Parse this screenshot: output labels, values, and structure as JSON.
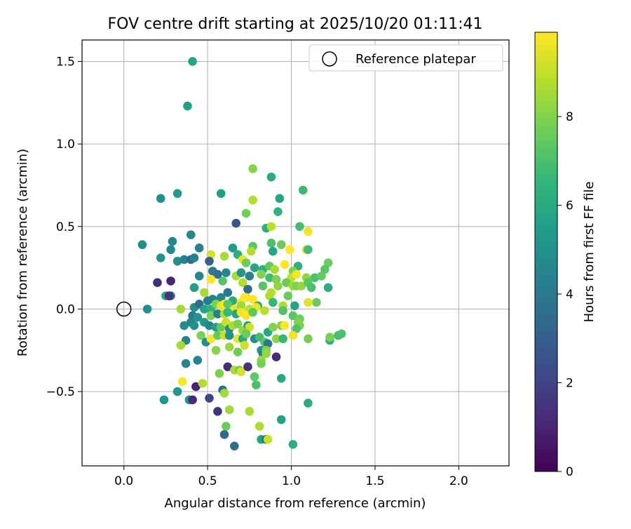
{
  "chart_data": {
    "type": "scatter",
    "title": "FOV centre drift starting at 2025/10/20 01:11:41",
    "xlabel": "Angular distance from reference (arcmin)",
    "ylabel": "Rotation from reference (arcmin)",
    "xlim": [
      -0.25,
      2.3
    ],
    "ylim": [
      -0.95,
      1.63
    ],
    "xticks": [
      0.0,
      0.5,
      1.0,
      1.5,
      2.0
    ],
    "xtick_labels": [
      "0.0",
      "0.5",
      "1.0",
      "1.5",
      "2.0"
    ],
    "yticks": [
      -0.5,
      0.0,
      0.5,
      1.0,
      1.5
    ],
    "ytick_labels": [
      "−0.5",
      "0.0",
      "0.5",
      "1.0",
      "1.5"
    ],
    "grid": true,
    "legend": {
      "position": "top-right",
      "label": "Reference platepar"
    },
    "reference_point": {
      "x": 0.0,
      "y": 0.0
    },
    "colorbar": {
      "label": "Hours from first FF file",
      "range": [
        0,
        9.9
      ],
      "ticks": [
        0,
        2,
        4,
        6,
        8
      ],
      "tick_labels": [
        "0",
        "2",
        "4",
        "6",
        "8"
      ],
      "colormap": "viridis",
      "stops": [
        "#440154",
        "#482878",
        "#3e4989",
        "#31688e",
        "#26828e",
        "#1f9e89",
        "#35b779",
        "#6ece58",
        "#b5de2b",
        "#fde725"
      ]
    },
    "points": [
      {
        "x": 0.41,
        "y": 1.5,
        "c": 5.8
      },
      {
        "x": 0.38,
        "y": 1.23,
        "c": 5.6
      },
      {
        "x": 0.77,
        "y": 0.85,
        "c": 8.1
      },
      {
        "x": 0.88,
        "y": 0.8,
        "c": 6.1
      },
      {
        "x": 1.07,
        "y": 0.72,
        "c": 6.7
      },
      {
        "x": 0.32,
        "y": 0.7,
        "c": 5.2
      },
      {
        "x": 0.58,
        "y": 0.7,
        "c": 5.6
      },
      {
        "x": 0.22,
        "y": 0.67,
        "c": 5.0
      },
      {
        "x": 0.93,
        "y": 0.67,
        "c": 5.8
      },
      {
        "x": 0.77,
        "y": 0.66,
        "c": 8.8
      },
      {
        "x": 0.73,
        "y": 0.58,
        "c": 7.8
      },
      {
        "x": 0.92,
        "y": 0.59,
        "c": 6.4
      },
      {
        "x": 0.67,
        "y": 0.52,
        "c": 2.7
      },
      {
        "x": 0.85,
        "y": 0.49,
        "c": 6.3
      },
      {
        "x": 0.88,
        "y": 0.5,
        "c": 8.9
      },
      {
        "x": 1.05,
        "y": 0.5,
        "c": 6.9
      },
      {
        "x": 1.1,
        "y": 0.47,
        "c": 9.7
      },
      {
        "x": 0.11,
        "y": 0.39,
        "c": 4.8
      },
      {
        "x": 0.4,
        "y": 0.45,
        "c": 4.6
      },
      {
        "x": 0.29,
        "y": 0.41,
        "c": 4.6
      },
      {
        "x": 0.28,
        "y": 0.36,
        "c": 4.6
      },
      {
        "x": 0.45,
        "y": 0.37,
        "c": 4.3
      },
      {
        "x": 0.65,
        "y": 0.37,
        "c": 5.5
      },
      {
        "x": 0.77,
        "y": 0.38,
        "c": 7.3
      },
      {
        "x": 0.88,
        "y": 0.4,
        "c": 7.0
      },
      {
        "x": 0.94,
        "y": 0.39,
        "c": 7.6
      },
      {
        "x": 0.52,
        "y": 0.33,
        "c": 9.3
      },
      {
        "x": 0.6,
        "y": 0.32,
        "c": 8.6
      },
      {
        "x": 0.68,
        "y": 0.33,
        "c": 6.3
      },
      {
        "x": 0.76,
        "y": 0.35,
        "c": 8.8
      },
      {
        "x": 0.89,
        "y": 0.35,
        "c": 5.8
      },
      {
        "x": 0.99,
        "y": 0.36,
        "c": 9.9
      },
      {
        "x": 1.09,
        "y": 0.36,
        "c": 9.4
      },
      {
        "x": 1.1,
        "y": 0.36,
        "c": 6.8
      },
      {
        "x": 0.22,
        "y": 0.31,
        "c": 5.2
      },
      {
        "x": 0.32,
        "y": 0.29,
        "c": 4.8
      },
      {
        "x": 0.36,
        "y": 0.3,
        "c": 4.4
      },
      {
        "x": 0.4,
        "y": 0.3,
        "c": 3.4
      },
      {
        "x": 0.42,
        "y": 0.31,
        "c": 4.4
      },
      {
        "x": 0.51,
        "y": 0.29,
        "c": 3.1
      },
      {
        "x": 0.71,
        "y": 0.3,
        "c": 9.6
      },
      {
        "x": 0.73,
        "y": 0.28,
        "c": 7.6
      },
      {
        "x": 0.78,
        "y": 0.25,
        "c": 5.8
      },
      {
        "x": 0.83,
        "y": 0.24,
        "c": 6.4
      },
      {
        "x": 0.87,
        "y": 0.26,
        "c": 7.5
      },
      {
        "x": 0.9,
        "y": 0.24,
        "c": 8.6
      },
      {
        "x": 0.96,
        "y": 0.27,
        "c": 9.9
      },
      {
        "x": 1.04,
        "y": 0.26,
        "c": 6.4
      },
      {
        "x": 1.01,
        "y": 0.23,
        "c": 7.9
      },
      {
        "x": 1.22,
        "y": 0.28,
        "c": 7.6
      },
      {
        "x": 1.2,
        "y": 0.24,
        "c": 7.3
      },
      {
        "x": 0.45,
        "y": 0.2,
        "c": 4.6
      },
      {
        "x": 0.53,
        "y": 0.23,
        "c": 4.2
      },
      {
        "x": 0.56,
        "y": 0.21,
        "c": 3.6
      },
      {
        "x": 0.61,
        "y": 0.22,
        "c": 4.6
      },
      {
        "x": 0.67,
        "y": 0.2,
        "c": 8.6
      },
      {
        "x": 0.7,
        "y": 0.22,
        "c": 5.1
      },
      {
        "x": 0.75,
        "y": 0.2,
        "c": 4.3
      },
      {
        "x": 0.82,
        "y": 0.21,
        "c": 8.0
      },
      {
        "x": 0.87,
        "y": 0.19,
        "c": 6.8
      },
      {
        "x": 0.91,
        "y": 0.18,
        "c": 7.9
      },
      {
        "x": 1.0,
        "y": 0.19,
        "c": 8.9
      },
      {
        "x": 1.03,
        "y": 0.21,
        "c": 9.8
      },
      {
        "x": 1.14,
        "y": 0.19,
        "c": 7.0
      },
      {
        "x": 1.09,
        "y": 0.19,
        "c": 8.2
      },
      {
        "x": 1.18,
        "y": 0.2,
        "c": 7.5
      },
      {
        "x": 0.52,
        "y": 0.18,
        "c": 9.8
      },
      {
        "x": 0.59,
        "y": 0.17,
        "c": 7.2
      },
      {
        "x": 0.71,
        "y": 0.16,
        "c": 8.7
      },
      {
        "x": 0.74,
        "y": 0.12,
        "c": 3.4
      },
      {
        "x": 0.83,
        "y": 0.14,
        "c": 7.2
      },
      {
        "x": 0.88,
        "y": 0.1,
        "c": 8.8
      },
      {
        "x": 0.92,
        "y": 0.14,
        "c": 8.2
      },
      {
        "x": 0.97,
        "y": 0.16,
        "c": 7.6
      },
      {
        "x": 1.01,
        "y": 0.14,
        "c": 8.5
      },
      {
        "x": 1.03,
        "y": 0.14,
        "c": 7.9
      },
      {
        "x": 1.06,
        "y": 0.14,
        "c": 8.3
      },
      {
        "x": 1.1,
        "y": 0.16,
        "c": 7.3
      },
      {
        "x": 1.12,
        "y": 0.13,
        "c": 7.0
      },
      {
        "x": 1.22,
        "y": 0.13,
        "c": 6.2
      },
      {
        "x": 0.42,
        "y": 0.13,
        "c": 5.5
      },
      {
        "x": 0.2,
        "y": 0.16,
        "c": 1.3
      },
      {
        "x": 0.28,
        "y": 0.17,
        "c": 1.0
      },
      {
        "x": 0.25,
        "y": 0.08,
        "c": 6.0
      },
      {
        "x": 0.28,
        "y": 0.08,
        "c": 4.5
      },
      {
        "x": 0.27,
        "y": 0.08,
        "c": 1.4
      },
      {
        "x": 0.48,
        "y": 0.1,
        "c": 8.6
      },
      {
        "x": 0.53,
        "y": 0.06,
        "c": 4.4
      },
      {
        "x": 0.58,
        "y": 0.07,
        "c": 4.6
      },
      {
        "x": 0.62,
        "y": 0.1,
        "c": 4.0
      },
      {
        "x": 0.65,
        "y": 0.05,
        "c": 5.9
      },
      {
        "x": 0.7,
        "y": 0.04,
        "c": 9.8
      },
      {
        "x": 0.73,
        "y": 0.07,
        "c": 9.2
      },
      {
        "x": 0.77,
        "y": 0.06,
        "c": 9.9
      },
      {
        "x": 0.8,
        "y": 0.02,
        "c": 6.2
      },
      {
        "x": 0.87,
        "y": 0.08,
        "c": 8.8
      },
      {
        "x": 0.89,
        "y": 0.04,
        "c": 6.6
      },
      {
        "x": 0.95,
        "y": 0.02,
        "c": 8.7
      },
      {
        "x": 0.98,
        "y": 0.08,
        "c": 7.6
      },
      {
        "x": 1.02,
        "y": 0.02,
        "c": 5.8
      },
      {
        "x": 1.15,
        "y": 0.04,
        "c": 7.6
      },
      {
        "x": 1.1,
        "y": 0.04,
        "c": 9.5
      },
      {
        "x": 0.14,
        "y": 0.0,
        "c": 4.9
      },
      {
        "x": 0.34,
        "y": 0.0,
        "c": 8.5
      },
      {
        "x": 0.42,
        "y": 0.01,
        "c": 5.0
      },
      {
        "x": 0.45,
        "y": 0.03,
        "c": 3.6
      },
      {
        "x": 0.48,
        "y": 0.0,
        "c": 5.8
      },
      {
        "x": 0.5,
        "y": 0.05,
        "c": 4.2
      },
      {
        "x": 0.52,
        "y": 0.0,
        "c": 6.3
      },
      {
        "x": 0.55,
        "y": 0.03,
        "c": 7.9
      },
      {
        "x": 0.58,
        "y": 0.02,
        "c": 9.5
      },
      {
        "x": 0.6,
        "y": 0.03,
        "c": 9.9
      },
      {
        "x": 0.62,
        "y": 0.03,
        "c": 7.3
      },
      {
        "x": 0.66,
        "y": 0.0,
        "c": 9.6
      },
      {
        "x": 0.7,
        "y": 0.02,
        "c": 8.4
      },
      {
        "x": 0.72,
        "y": 0.07,
        "c": 9.9
      },
      {
        "x": 0.75,
        "y": 0.0,
        "c": 9.0
      },
      {
        "x": 0.79,
        "y": 0.01,
        "c": 9.6
      },
      {
        "x": 0.84,
        "y": -0.01,
        "c": 8.9
      },
      {
        "x": 0.41,
        "y": -0.04,
        "c": 4.1
      },
      {
        "x": 0.44,
        "y": -0.05,
        "c": 5.1
      },
      {
        "x": 0.52,
        "y": -0.04,
        "c": 7.9
      },
      {
        "x": 0.56,
        "y": -0.03,
        "c": 4.3
      },
      {
        "x": 0.6,
        "y": -0.03,
        "c": 8.8
      },
      {
        "x": 0.62,
        "y": -0.02,
        "c": 6.6
      },
      {
        "x": 0.67,
        "y": -0.03,
        "c": 5.8
      },
      {
        "x": 0.7,
        "y": -0.02,
        "c": 9.7
      },
      {
        "x": 0.73,
        "y": -0.04,
        "c": 9.9
      },
      {
        "x": 0.77,
        "y": -0.02,
        "c": 7.4
      },
      {
        "x": 0.95,
        "y": -0.01,
        "c": 7.1
      },
      {
        "x": 1.01,
        "y": -0.04,
        "c": 7.3
      },
      {
        "x": 1.05,
        "y": -0.06,
        "c": 7.6
      },
      {
        "x": 1.04,
        "y": -0.08,
        "c": 8.0
      },
      {
        "x": 1.05,
        "y": -0.1,
        "c": 7.9
      },
      {
        "x": 0.36,
        "y": -0.1,
        "c": 4.8
      },
      {
        "x": 0.4,
        "y": -0.08,
        "c": 4.3
      },
      {
        "x": 0.42,
        "y": -0.1,
        "c": 4.9
      },
      {
        "x": 0.48,
        "y": -0.08,
        "c": 5.4
      },
      {
        "x": 0.51,
        "y": -0.1,
        "c": 4.6
      },
      {
        "x": 0.55,
        "y": -0.11,
        "c": 5.6
      },
      {
        "x": 0.58,
        "y": -0.11,
        "c": 7.5
      },
      {
        "x": 0.61,
        "y": -0.08,
        "c": 9.1
      },
      {
        "x": 0.63,
        "y": -0.12,
        "c": 4.8
      },
      {
        "x": 0.65,
        "y": -0.1,
        "c": 8.7
      },
      {
        "x": 0.68,
        "y": -0.09,
        "c": 7.9
      },
      {
        "x": 0.71,
        "y": -0.13,
        "c": 8.4
      },
      {
        "x": 0.74,
        "y": -0.1,
        "c": 5.6
      },
      {
        "x": 0.75,
        "y": -0.11,
        "c": 9.2
      },
      {
        "x": 0.86,
        "y": -0.14,
        "c": 5.9
      },
      {
        "x": 0.89,
        "y": -0.11,
        "c": 8.0
      },
      {
        "x": 0.94,
        "y": -0.1,
        "c": 8.1
      },
      {
        "x": 0.96,
        "y": -0.1,
        "c": 9.9
      },
      {
        "x": 1.03,
        "y": -0.12,
        "c": 7.1
      },
      {
        "x": 1.01,
        "y": -0.16,
        "c": 9.7
      },
      {
        "x": 0.37,
        "y": -0.19,
        "c": 4.5
      },
      {
        "x": 0.46,
        "y": -0.16,
        "c": 7.9
      },
      {
        "x": 0.49,
        "y": -0.2,
        "c": 4.9
      },
      {
        "x": 0.52,
        "y": -0.18,
        "c": 9.8
      },
      {
        "x": 0.56,
        "y": -0.16,
        "c": 7.5
      },
      {
        "x": 0.6,
        "y": -0.16,
        "c": 9.1
      },
      {
        "x": 0.63,
        "y": -0.16,
        "c": 5.0
      },
      {
        "x": 0.68,
        "y": -0.18,
        "c": 9.6
      },
      {
        "x": 0.71,
        "y": -0.18,
        "c": 6.0
      },
      {
        "x": 0.73,
        "y": -0.15,
        "c": 7.6
      },
      {
        "x": 0.78,
        "y": -0.18,
        "c": 4.9
      },
      {
        "x": 0.81,
        "y": -0.17,
        "c": 6.9
      },
      {
        "x": 0.84,
        "y": -0.2,
        "c": 7.2
      },
      {
        "x": 0.86,
        "y": -0.21,
        "c": 4.0
      },
      {
        "x": 0.91,
        "y": -0.18,
        "c": 8.2
      },
      {
        "x": 0.95,
        "y": -0.18,
        "c": 6.6
      },
      {
        "x": 1.1,
        "y": -0.18,
        "c": 7.8
      },
      {
        "x": 1.23,
        "y": -0.19,
        "c": 6.4
      },
      {
        "x": 1.23,
        "y": -0.17,
        "c": 7.9
      },
      {
        "x": 1.28,
        "y": -0.16,
        "c": 6.9
      },
      {
        "x": 1.3,
        "y": -0.15,
        "c": 7.1
      },
      {
        "x": 0.34,
        "y": -0.22,
        "c": 8.6
      },
      {
        "x": 0.55,
        "y": -0.25,
        "c": 8.1
      },
      {
        "x": 0.63,
        "y": -0.23,
        "c": 8.4
      },
      {
        "x": 0.68,
        "y": -0.26,
        "c": 7.7
      },
      {
        "x": 0.72,
        "y": -0.22,
        "c": 9.2
      },
      {
        "x": 0.82,
        "y": -0.25,
        "c": 5.3
      },
      {
        "x": 0.83,
        "y": -0.27,
        "c": 4.5
      },
      {
        "x": 0.85,
        "y": -0.25,
        "c": 8.0
      },
      {
        "x": 0.85,
        "y": -0.27,
        "c": 8.3
      },
      {
        "x": 0.44,
        "y": -0.31,
        "c": 4.6
      },
      {
        "x": 0.37,
        "y": -0.33,
        "c": 4.6
      },
      {
        "x": 0.62,
        "y": -0.35,
        "c": 1.3
      },
      {
        "x": 0.66,
        "y": -0.37,
        "c": 8.7
      },
      {
        "x": 0.69,
        "y": -0.37,
        "c": 7.7
      },
      {
        "x": 0.7,
        "y": -0.38,
        "c": 9.3
      },
      {
        "x": 0.74,
        "y": -0.35,
        "c": 1.4
      },
      {
        "x": 0.82,
        "y": -0.31,
        "c": 8.4
      },
      {
        "x": 0.82,
        "y": -0.33,
        "c": 7.7
      },
      {
        "x": 0.91,
        "y": -0.29,
        "c": 1.2
      },
      {
        "x": 0.57,
        "y": -0.39,
        "c": 7.9
      },
      {
        "x": 0.78,
        "y": -0.41,
        "c": 7.4
      },
      {
        "x": 0.94,
        "y": -0.42,
        "c": 6.0
      },
      {
        "x": 0.35,
        "y": -0.44,
        "c": 9.8
      },
      {
        "x": 0.43,
        "y": -0.47,
        "c": 1.0
      },
      {
        "x": 0.47,
        "y": -0.45,
        "c": 8.8
      },
      {
        "x": 0.79,
        "y": -0.46,
        "c": 7.0
      },
      {
        "x": 0.32,
        "y": -0.5,
        "c": 5.2
      },
      {
        "x": 0.59,
        "y": -0.49,
        "c": 3.6
      },
      {
        "x": 0.6,
        "y": -0.51,
        "c": 8.5
      },
      {
        "x": 0.24,
        "y": -0.55,
        "c": 5.2
      },
      {
        "x": 0.39,
        "y": -0.55,
        "c": 5.3
      },
      {
        "x": 0.41,
        "y": -0.55,
        "c": 1.2
      },
      {
        "x": 0.51,
        "y": -0.54,
        "c": 2.1
      },
      {
        "x": 1.1,
        "y": -0.57,
        "c": 6.1
      },
      {
        "x": 0.56,
        "y": -0.62,
        "c": 1.5
      },
      {
        "x": 0.63,
        "y": -0.61,
        "c": 8.5
      },
      {
        "x": 0.75,
        "y": -0.62,
        "c": 8.6
      },
      {
        "x": 0.94,
        "y": -0.67,
        "c": 5.7
      },
      {
        "x": 0.61,
        "y": -0.71,
        "c": 7.6
      },
      {
        "x": 0.81,
        "y": -0.71,
        "c": 8.7
      },
      {
        "x": 0.6,
        "y": -0.76,
        "c": 3.4
      },
      {
        "x": 0.82,
        "y": -0.79,
        "c": 5.7
      },
      {
        "x": 0.85,
        "y": -0.79,
        "c": 2.8
      },
      {
        "x": 0.86,
        "y": -0.79,
        "c": 9.1
      },
      {
        "x": 0.66,
        "y": -0.83,
        "c": 3.7
      },
      {
        "x": 1.01,
        "y": -0.82,
        "c": 6.2
      }
    ]
  }
}
